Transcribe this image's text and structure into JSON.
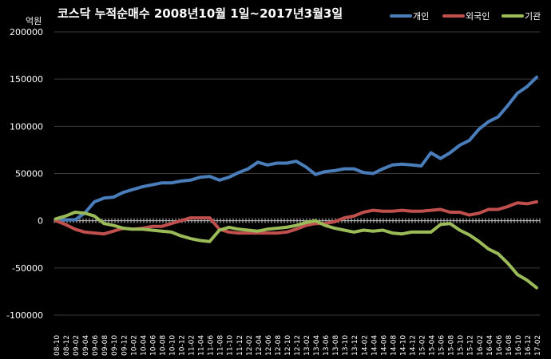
{
  "chart_data": {
    "type": "line",
    "title": "코스닥 누적순매수 2008년10월 1일~2017년3월3일",
    "ylabel": "억원",
    "ylim": [
      -100000,
      200000
    ],
    "yticks": [
      200000,
      150000,
      100000,
      50000,
      0,
      -50000,
      -100000
    ],
    "legend_position": "top-right",
    "grid": true,
    "categories": [
      "08-10",
      "08-12",
      "09-02",
      "09-04",
      "09-06",
      "09-08",
      "09-10",
      "09-12",
      "10-02",
      "10-04",
      "10-06",
      "10-08",
      "10-10",
      "10-12",
      "11-02",
      "11-04",
      "11-06",
      "11-08",
      "11-10",
      "11-12",
      "12-02",
      "12-04",
      "12-06",
      "12-08",
      "12-10",
      "12-12",
      "13-02",
      "13-04",
      "13-06",
      "13-08",
      "13-10",
      "13-12",
      "14-02",
      "14-04",
      "14-06",
      "14-08",
      "14-10",
      "14-12",
      "15-02",
      "15-04",
      "15-06",
      "15-08",
      "15-10",
      "15-12",
      "16-02",
      "16-04",
      "16-06",
      "16-08",
      "16-10",
      "16-12",
      "17-02"
    ],
    "series": [
      {
        "name": "개인",
        "color": "#4a7ebb",
        "values": [
          0,
          1000,
          1000,
          8000,
          20000,
          24000,
          25000,
          30000,
          33000,
          36000,
          38000,
          40000,
          40000,
          42000,
          43000,
          46000,
          47000,
          43000,
          46000,
          51000,
          55000,
          62000,
          59000,
          61000,
          61000,
          63000,
          57000,
          49000,
          52000,
          53000,
          55000,
          55000,
          51000,
          50000,
          55000,
          59000,
          60000,
          59000,
          58000,
          72000,
          66000,
          72000,
          80000,
          85000,
          97000,
          105000,
          110000,
          122000,
          135000,
          142000,
          152000
        ]
      },
      {
        "name": "외국인",
        "color": "#c0504d",
        "values": [
          0,
          -4000,
          -9000,
          -12000,
          -13000,
          -14000,
          -11000,
          -8000,
          -9000,
          -8000,
          -6000,
          -6000,
          -3000,
          0,
          3000,
          3000,
          3000,
          -9000,
          -12000,
          -13000,
          -13000,
          -13000,
          -13000,
          -13000,
          -12000,
          -9000,
          -5000,
          -3000,
          -3000,
          -1000,
          3000,
          5000,
          9000,
          11000,
          10000,
          10000,
          11000,
          10000,
          10000,
          11000,
          12000,
          9000,
          9000,
          6000,
          8000,
          12000,
          12000,
          15000,
          19000,
          18000,
          20000
        ]
      },
      {
        "name": "기관",
        "color": "#9bbb59",
        "values": [
          2000,
          5000,
          9000,
          8000,
          5000,
          -3000,
          -5000,
          -8000,
          -9000,
          -9000,
          -10000,
          -11000,
          -12000,
          -16000,
          -19000,
          -21000,
          -22000,
          -10000,
          -7000,
          -9000,
          -10000,
          -11000,
          -9000,
          -8000,
          -7000,
          -5000,
          -2000,
          0,
          -5000,
          -8000,
          -10000,
          -12000,
          -10000,
          -11000,
          -10000,
          -13000,
          -14000,
          -12000,
          -12000,
          -12000,
          -4000,
          -3000,
          -10000,
          -15000,
          -22000,
          -30000,
          -35000,
          -45000,
          -57000,
          -63000,
          -71000
        ]
      }
    ]
  }
}
